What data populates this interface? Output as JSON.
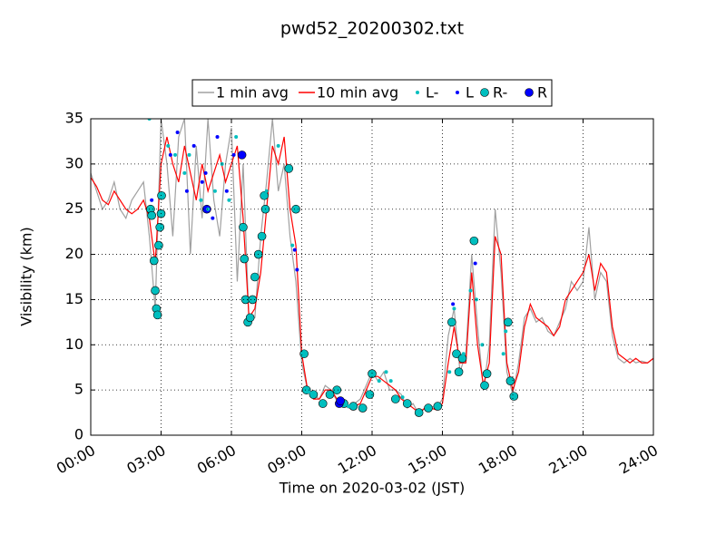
{
  "chart_data": {
    "type": "line",
    "title": "pwd52_20200302.txt",
    "xlabel": "Time on 2020-03-02 (JST)",
    "ylabel": "Visibility (km)",
    "xlim": [
      0,
      24
    ],
    "ylim": [
      0,
      35
    ],
    "xticks": [
      {
        "value": 0,
        "label": "00:00"
      },
      {
        "value": 3,
        "label": "03:00"
      },
      {
        "value": 6,
        "label": "06:00"
      },
      {
        "value": 9,
        "label": "09:00"
      },
      {
        "value": 12,
        "label": "12:00"
      },
      {
        "value": 15,
        "label": "15:00"
      },
      {
        "value": 18,
        "label": "18:00"
      },
      {
        "value": 21,
        "label": "21:00"
      },
      {
        "value": 24,
        "label": "24:00"
      }
    ],
    "yticks": [
      0,
      5,
      10,
      15,
      20,
      25,
      30,
      35
    ],
    "grid": true,
    "legend": "top",
    "x": [
      0,
      0.25,
      0.5,
      0.75,
      1,
      1.25,
      1.5,
      1.75,
      2,
      2.25,
      2.5,
      2.75,
      3,
      3.25,
      3.5,
      3.75,
      4,
      4.25,
      4.5,
      4.75,
      5,
      5.25,
      5.5,
      5.75,
      6,
      6.25,
      6.5,
      6.75,
      7,
      7.25,
      7.5,
      7.75,
      8,
      8.25,
      8.5,
      8.75,
      9,
      9.25,
      9.5,
      9.75,
      10,
      10.25,
      10.5,
      10.75,
      11,
      11.25,
      11.5,
      11.75,
      12,
      12.25,
      12.5,
      12.75,
      13,
      13.25,
      13.5,
      13.75,
      14,
      14.25,
      14.5,
      14.75,
      15,
      15.25,
      15.5,
      15.75,
      16,
      16.25,
      16.5,
      16.75,
      17,
      17.25,
      17.5,
      17.75,
      18,
      18.25,
      18.5,
      18.75,
      19,
      19.25,
      19.5,
      19.75,
      20,
      20.25,
      20.5,
      20.75,
      21,
      21.25,
      21.5,
      21.75,
      22,
      22.25,
      22.5,
      22.75,
      23,
      23.25,
      23.5,
      23.75,
      24
    ],
    "series": [
      {
        "name": "1 min avg",
        "kind": "line",
        "color": "#a0a0a0",
        "values": [
          29,
          27,
          25,
          26,
          28,
          25,
          24,
          26,
          27,
          28,
          22,
          14,
          35,
          30,
          22,
          33,
          35,
          20,
          32,
          24,
          35,
          26,
          22,
          30,
          34,
          17,
          30,
          12.5,
          13,
          22,
          28,
          35,
          27,
          30,
          22,
          17,
          8,
          5,
          4.5,
          4,
          5.5,
          5,
          3.8,
          3.4,
          3,
          3.5,
          4,
          5.5,
          7,
          6,
          7,
          5,
          5,
          4.5,
          3,
          3.5,
          2.3,
          3,
          3.2,
          3,
          4,
          11,
          14,
          7,
          9,
          20,
          12,
          5,
          10,
          25,
          18,
          7,
          4.5,
          8,
          13,
          14,
          12.5,
          13,
          11.5,
          11,
          12.5,
          14,
          17,
          16,
          17,
          23,
          15,
          18,
          17,
          11,
          8.5,
          8,
          8.5,
          8,
          8.2,
          8,
          8.5
        ]
      },
      {
        "name": "10 min avg",
        "kind": "line",
        "color": "#ff0000",
        "values": [
          28.5,
          27.5,
          26,
          25.5,
          27,
          26,
          25,
          24.5,
          25,
          26,
          24,
          19,
          30,
          33,
          30,
          28,
          32,
          29,
          26,
          30,
          27,
          29,
          31,
          28,
          30,
          32,
          24,
          13,
          14,
          18,
          25,
          32,
          30,
          33,
          25,
          21,
          9,
          5,
          4,
          4,
          5,
          5,
          4,
          3.5,
          3.2,
          3.2,
          3.5,
          5,
          6.5,
          6.5,
          6,
          5.5,
          5,
          4,
          3.5,
          3,
          2.5,
          3,
          3,
          2.8,
          3.5,
          8,
          12,
          8,
          8,
          18,
          10,
          5.5,
          8,
          22,
          20,
          8,
          5,
          7,
          12,
          14.5,
          13,
          12.5,
          12,
          11,
          12,
          15,
          16,
          17,
          18,
          20,
          16,
          19,
          18,
          12,
          9,
          8.5,
          8,
          8.5,
          8,
          8,
          8.5
        ]
      },
      {
        "name": "L-",
        "kind": "scatter",
        "marker": "dot",
        "color": "#00bfbf",
        "x": [
          2.5,
          3.3,
          3.6,
          4.0,
          4.2,
          4.7,
          5.0,
          5.3,
          5.6,
          5.9,
          6.2,
          7.5,
          8.0,
          8.6,
          9.3,
          11.0,
          12.3,
          12.6,
          12.8,
          13.3,
          15.3,
          15.5,
          15.9,
          16.2,
          16.45,
          16.7,
          17.6,
          17.7
        ],
        "values": [
          35,
          32,
          31,
          29,
          31,
          26,
          25,
          27,
          30,
          26,
          33,
          27,
          32,
          21,
          4.8,
          3.2,
          6,
          7,
          6,
          4.2,
          7,
          14,
          9,
          16,
          15,
          10,
          9,
          11.5
        ]
      },
      {
        "name": "L",
        "kind": "scatter",
        "marker": "dot",
        "color": "#0000ff",
        "x": [
          2.6,
          3.4,
          3.7,
          4.1,
          4.4,
          4.75,
          4.9,
          5.2,
          5.4,
          5.8,
          6.1,
          8.7,
          8.8,
          15.45,
          16.4
        ],
        "values": [
          26,
          31,
          33.5,
          27,
          32,
          28,
          29,
          24,
          33,
          27,
          31,
          20.5,
          18.3,
          14.5,
          19
        ]
      },
      {
        "name": "R-",
        "kind": "scatter",
        "marker": "circle",
        "color": "#00bfbf",
        "x": [
          2.55,
          2.6,
          2.7,
          2.75,
          2.8,
          2.85,
          2.9,
          2.95,
          3.0,
          3.02,
          6.5,
          6.55,
          6.6,
          6.7,
          6.8,
          6.9,
          7.0,
          7.15,
          7.3,
          7.4,
          7.45,
          8.45,
          8.75,
          9.1,
          9.2,
          9.5,
          9.9,
          10.2,
          10.5,
          10.8,
          11.2,
          11.6,
          11.9,
          12.0,
          13.0,
          13.5,
          14.0,
          14.4,
          14.8,
          15.4,
          15.6,
          15.7,
          15.85,
          16.35,
          16.8,
          16.9,
          17.8,
          17.9,
          18.05
        ],
        "values": [
          25,
          24.3,
          19.3,
          16,
          14,
          13.3,
          21,
          23,
          24.5,
          26.5,
          23,
          19.5,
          15,
          12.5,
          13,
          15,
          17.5,
          20,
          22,
          26.5,
          25,
          29.5,
          25,
          9,
          5,
          4.5,
          3.5,
          4.5,
          5,
          3.5,
          3.2,
          3,
          4.5,
          6.8,
          4,
          3.5,
          2.5,
          3,
          3.2,
          12.5,
          9,
          7,
          8.5,
          21.5,
          5.5,
          6.8,
          12.5,
          6,
          4.3
        ]
      },
      {
        "name": "R",
        "kind": "scatter",
        "marker": "circle",
        "color": "#0000ff",
        "x": [
          10.6,
          10.65,
          6.45,
          4.95
        ],
        "values": [
          3.5,
          3.8,
          31,
          25
        ]
      }
    ]
  }
}
